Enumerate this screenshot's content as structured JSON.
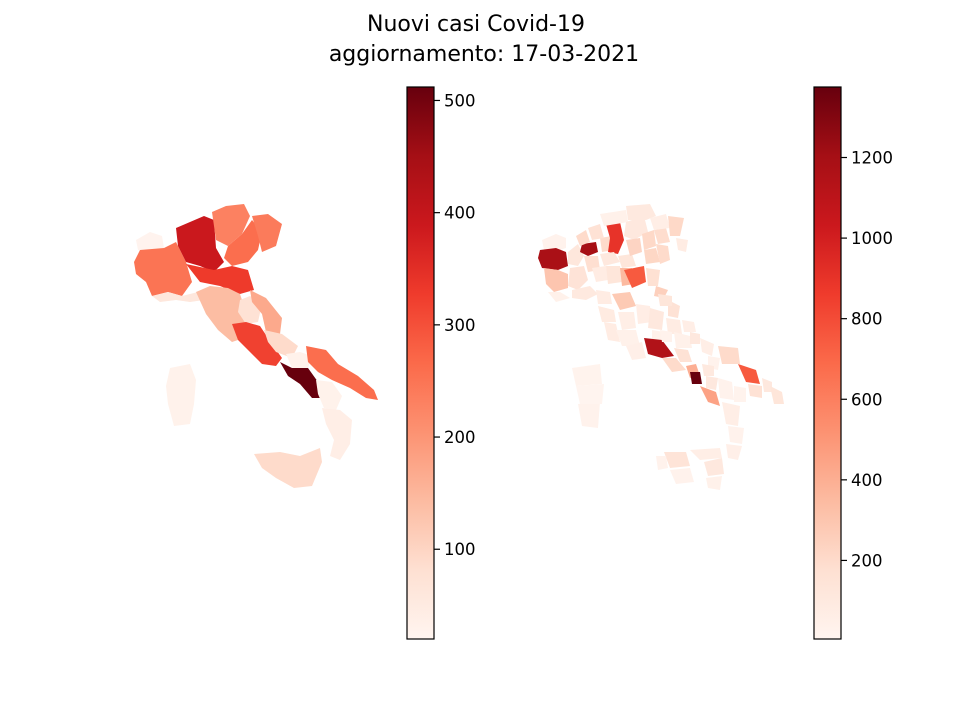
{
  "figure": {
    "title_line1": "Nuovi casi Covid-19",
    "title_line2": "aggiornamento: 17-03-2021"
  },
  "colorscale": {
    "name": "Reds",
    "stops": [
      "#fff5f0",
      "#fee0d2",
      "#fcbba1",
      "#fc9272",
      "#fb6a4a",
      "#ef3b2c",
      "#cb181d",
      "#a50f15",
      "#67000d"
    ]
  },
  "maps": [
    {
      "id": "regions",
      "colorbar": {
        "vmin": 20,
        "vmax": 512,
        "ticks": [
          100,
          200,
          300,
          400,
          500
        ]
      },
      "areas": [
        {
          "name": "Valle d'Aosta",
          "value": 25
        },
        {
          "name": "Piemonte",
          "value": 250
        },
        {
          "name": "Lombardia",
          "value": 390
        },
        {
          "name": "Trentino-Alto Adige",
          "value": 230
        },
        {
          "name": "Veneto",
          "value": 260
        },
        {
          "name": "Friuli-Venezia Giulia",
          "value": 240
        },
        {
          "name": "Liguria",
          "value": 60
        },
        {
          "name": "Emilia-Romagna",
          "value": 330
        },
        {
          "name": "Toscana",
          "value": 140
        },
        {
          "name": "Umbria",
          "value": 75
        },
        {
          "name": "Marche",
          "value": 170
        },
        {
          "name": "Lazio",
          "value": 320
        },
        {
          "name": "Abruzzo",
          "value": 90
        },
        {
          "name": "Molise",
          "value": 30
        },
        {
          "name": "Campania",
          "value": 512
        },
        {
          "name": "Puglia",
          "value": 260
        },
        {
          "name": "Basilicata",
          "value": 30
        },
        {
          "name": "Calabria",
          "value": 40
        },
        {
          "name": "Sicilia",
          "value": 90
        },
        {
          "name": "Sardegna",
          "value": 30
        }
      ]
    },
    {
      "id": "provinces",
      "colorbar": {
        "vmin": 5,
        "vmax": 1375,
        "ticks": [
          200,
          400,
          600,
          800,
          1000,
          1200
        ]
      },
      "areas": [
        {
          "name": "Aosta",
          "value": 30
        },
        {
          "name": "Torino",
          "value": 1180
        },
        {
          "name": "Cuneo",
          "value": 300
        },
        {
          "name": "Alessandria",
          "value": 150
        },
        {
          "name": "Novara",
          "value": 120
        },
        {
          "name": "Milano",
          "value": 1200
        },
        {
          "name": "Bergamo",
          "value": 200
        },
        {
          "name": "Brescia",
          "value": 900
        },
        {
          "name": "Varese",
          "value": 200
        },
        {
          "name": "Como",
          "value": 160
        },
        {
          "name": "Sondrio",
          "value": 40
        },
        {
          "name": "Pavia",
          "value": 180
        },
        {
          "name": "Cremona",
          "value": 110
        },
        {
          "name": "Mantova",
          "value": 130
        },
        {
          "name": "Trento",
          "value": 110
        },
        {
          "name": "Bolzano",
          "value": 100
        },
        {
          "name": "Verona",
          "value": 230
        },
        {
          "name": "Vicenza",
          "value": 210
        },
        {
          "name": "Padova",
          "value": 220
        },
        {
          "name": "Venezia",
          "value": 200
        },
        {
          "name": "Treviso",
          "value": 190
        },
        {
          "name": "Belluno",
          "value": 60
        },
        {
          "name": "Udine",
          "value": 210
        },
        {
          "name": "Trieste",
          "value": 80
        },
        {
          "name": "Genova",
          "value": 100
        },
        {
          "name": "Imperia",
          "value": 40
        },
        {
          "name": "Piacenza",
          "value": 80
        },
        {
          "name": "Parma",
          "value": 130
        },
        {
          "name": "Modena",
          "value": 350
        },
        {
          "name": "Bologna",
          "value": 750
        },
        {
          "name": "Ravenna",
          "value": 170
        },
        {
          "name": "Rimini",
          "value": 250
        },
        {
          "name": "Firenze",
          "value": 280
        },
        {
          "name": "Lucca",
          "value": 80
        },
        {
          "name": "Pisa",
          "value": 90
        },
        {
          "name": "Livorno",
          "value": 80
        },
        {
          "name": "Siena",
          "value": 60
        },
        {
          "name": "Arezzo",
          "value": 70
        },
        {
          "name": "Grosseto",
          "value": 40
        },
        {
          "name": "Perugia",
          "value": 110
        },
        {
          "name": "Terni",
          "value": 40
        },
        {
          "name": "Ancona",
          "value": 160
        },
        {
          "name": "Pesaro-Urbino",
          "value": 130
        },
        {
          "name": "Macerata",
          "value": 80
        },
        {
          "name": "Viterbo",
          "value": 50
        },
        {
          "name": "Roma",
          "value": 1150
        },
        {
          "name": "Latina",
          "value": 200
        },
        {
          "name": "Frosinone",
          "value": 160
        },
        {
          "name": "Rieti",
          "value": 30
        },
        {
          "name": "L'Aquila",
          "value": 40
        },
        {
          "name": "Teramo",
          "value": 60
        },
        {
          "name": "Pescara",
          "value": 110
        },
        {
          "name": "Chieti",
          "value": 60
        },
        {
          "name": "Campobasso",
          "value": 30
        },
        {
          "name": "Caserta",
          "value": 400
        },
        {
          "name": "Napoli",
          "value": 1375
        },
        {
          "name": "Benevento",
          "value": 100
        },
        {
          "name": "Avellino",
          "value": 110
        },
        {
          "name": "Salerno",
          "value": 450
        },
        {
          "name": "Foggia",
          "value": 200
        },
        {
          "name": "Bari",
          "value": 750
        },
        {
          "name": "Taranto",
          "value": 160
        },
        {
          "name": "Brindisi",
          "value": 110
        },
        {
          "name": "Lecce",
          "value": 130
        },
        {
          "name": "Potenza",
          "value": 30
        },
        {
          "name": "Matera",
          "value": 20
        },
        {
          "name": "Cosenza",
          "value": 60
        },
        {
          "name": "Catanzaro",
          "value": 30
        },
        {
          "name": "Reggio Calabria",
          "value": 50
        },
        {
          "name": "Palermo",
          "value": 140
        },
        {
          "name": "Trapani",
          "value": 30
        },
        {
          "name": "Catania",
          "value": 110
        },
        {
          "name": "Messina",
          "value": 60
        },
        {
          "name": "Siracusa",
          "value": 40
        },
        {
          "name": "Agrigento",
          "value": 30
        },
        {
          "name": "Sassari",
          "value": 20
        },
        {
          "name": "Cagliari",
          "value": 30
        },
        {
          "name": "Nuoro",
          "value": 10
        }
      ]
    }
  ]
}
